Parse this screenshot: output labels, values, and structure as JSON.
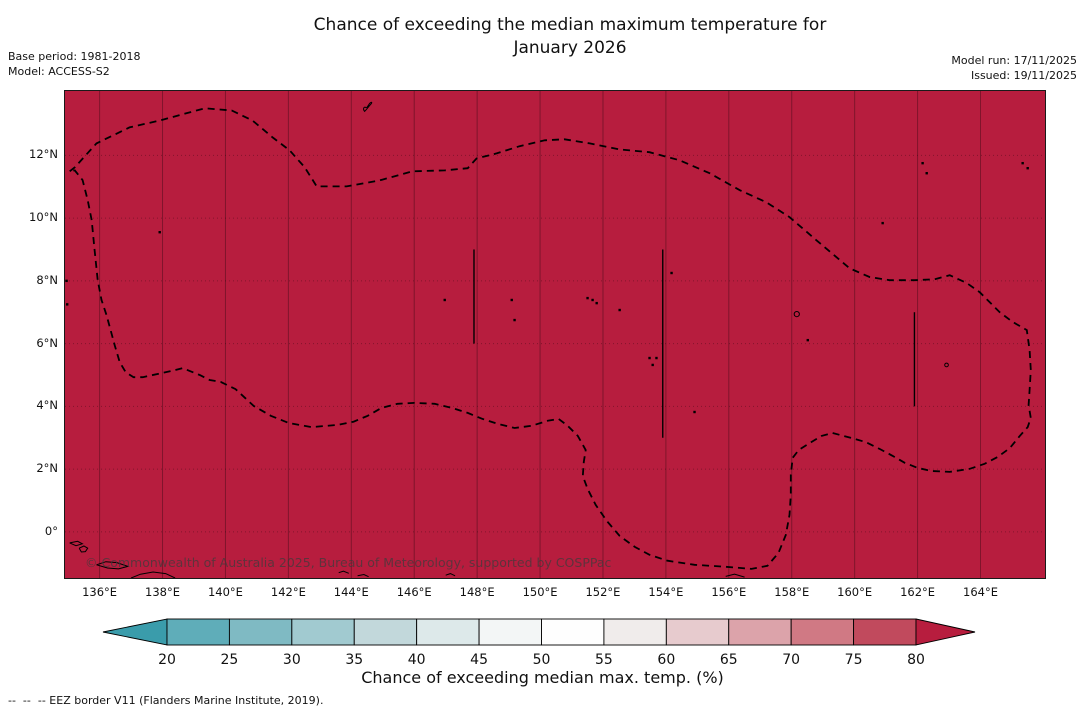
{
  "header": {
    "title_line1": "Chance of exceeding the median maximum temperature for",
    "title_line2": "January 2026",
    "base_period": "Base period: 1981-2018",
    "model": "Model: ACCESS-S2",
    "model_run": "Model run: 17/11/2025",
    "issued": "Issued: 19/11/2025"
  },
  "map": {
    "watermark": "© Commonwealth of Australia 2025, Bureau of Meteorology, supported by COSPPac"
  },
  "chart_data": {
    "type": "heatmap",
    "title": "Chance of exceeding the median maximum temperature for January 2026",
    "field_description": "Uniform chance > 80% across the displayed EEZ domain",
    "fill_color": "#b71d3e",
    "lon_range": [
      134.9,
      166.05
    ],
    "lat_range": [
      -1.47,
      14.05
    ],
    "lon_ticks": [
      136,
      138,
      140,
      142,
      144,
      146,
      148,
      150,
      152,
      154,
      156,
      158,
      160,
      162,
      164
    ],
    "lon_tick_labels": [
      "136°E",
      "138°E",
      "140°E",
      "142°E",
      "144°E",
      "146°E",
      "148°E",
      "150°E",
      "152°E",
      "154°E",
      "156°E",
      "158°E",
      "160°E",
      "162°E",
      "164°E"
    ],
    "lat_ticks": [
      0,
      2,
      4,
      6,
      8,
      10,
      12
    ],
    "lat_tick_labels": [
      "0°",
      "2°N",
      "4°N",
      "6°N",
      "8°N",
      "10°N",
      "12°N"
    ],
    "grid": true,
    "eez_border": [
      [
        135.05,
        11.49
      ],
      [
        135.21,
        11.62
      ],
      [
        135.9,
        12.38
      ],
      [
        136.95,
        12.89
      ],
      [
        137.91,
        13.11
      ],
      [
        139.34,
        13.5
      ],
      [
        140.2,
        13.43
      ],
      [
        140.86,
        13.11
      ],
      [
        141.5,
        12.57
      ],
      [
        142.04,
        12.16
      ],
      [
        142.52,
        11.62
      ],
      [
        142.9,
        11.01
      ],
      [
        143.85,
        11.01
      ],
      [
        144.9,
        11.2
      ],
      [
        145.95,
        11.49
      ],
      [
        146.97,
        11.52
      ],
      [
        147.7,
        11.59
      ],
      [
        147.98,
        11.9
      ],
      [
        148.62,
        12.06
      ],
      [
        149.35,
        12.29
      ],
      [
        150.15,
        12.48
      ],
      [
        150.78,
        12.51
      ],
      [
        151.58,
        12.38
      ],
      [
        152.53,
        12.19
      ],
      [
        153.48,
        12.1
      ],
      [
        154.44,
        11.84
      ],
      [
        155.39,
        11.43
      ],
      [
        156.35,
        10.89
      ],
      [
        157.2,
        10.5
      ],
      [
        157.93,
        10.03
      ],
      [
        158.79,
        9.29
      ],
      [
        159.84,
        8.4
      ],
      [
        160.48,
        8.12
      ],
      [
        161.11,
        8.02
      ],
      [
        161.91,
        8.02
      ],
      [
        162.54,
        8.05
      ],
      [
        163.02,
        8.18
      ],
      [
        163.56,
        7.93
      ],
      [
        163.97,
        7.64
      ],
      [
        164.61,
        7.0
      ],
      [
        165.02,
        6.69
      ],
      [
        165.47,
        6.43
      ],
      [
        165.56,
        5.79
      ],
      [
        165.6,
        5.16
      ],
      [
        165.56,
        4.52
      ],
      [
        165.53,
        4.04
      ],
      [
        165.6,
        3.63
      ],
      [
        165.5,
        3.34
      ],
      [
        165.25,
        3.06
      ],
      [
        164.93,
        2.67
      ],
      [
        164.55,
        2.39
      ],
      [
        164.13,
        2.17
      ],
      [
        163.66,
        2.01
      ],
      [
        163.02,
        1.91
      ],
      [
        162.45,
        1.94
      ],
      [
        162.0,
        2.04
      ],
      [
        161.59,
        2.2
      ],
      [
        161.21,
        2.42
      ],
      [
        160.8,
        2.64
      ],
      [
        160.35,
        2.86
      ],
      [
        159.91,
        2.99
      ],
      [
        159.3,
        3.15
      ],
      [
        158.95,
        3.06
      ],
      [
        158.57,
        2.83
      ],
      [
        158.22,
        2.61
      ],
      [
        158.03,
        2.36
      ],
      [
        157.97,
        1.82
      ],
      [
        157.97,
        1.18
      ],
      [
        157.93,
        0.54
      ],
      [
        157.81,
        -0.1
      ],
      [
        157.58,
        -0.67
      ],
      [
        157.23,
        -1.08
      ],
      [
        156.72,
        -1.18
      ],
      [
        155.87,
        -1.11
      ],
      [
        154.91,
        -1.05
      ],
      [
        154.05,
        -0.92
      ],
      [
        153.48,
        -0.73
      ],
      [
        153.01,
        -0.48
      ],
      [
        152.53,
        -0.13
      ],
      [
        152.12,
        0.35
      ],
      [
        151.77,
        0.86
      ],
      [
        151.51,
        1.37
      ],
      [
        151.36,
        1.78
      ],
      [
        151.39,
        2.23
      ],
      [
        151.45,
        2.61
      ],
      [
        151.2,
        3.06
      ],
      [
        150.88,
        3.38
      ],
      [
        150.59,
        3.6
      ],
      [
        150.24,
        3.54
      ],
      [
        149.73,
        3.38
      ],
      [
        149.19,
        3.31
      ],
      [
        148.66,
        3.44
      ],
      [
        148.17,
        3.6
      ],
      [
        147.7,
        3.79
      ],
      [
        147.19,
        3.95
      ],
      [
        146.65,
        4.08
      ],
      [
        146.01,
        4.11
      ],
      [
        145.47,
        4.08
      ],
      [
        144.96,
        3.95
      ],
      [
        144.52,
        3.7
      ],
      [
        144.07,
        3.51
      ],
      [
        143.57,
        3.41
      ],
      [
        142.74,
        3.34
      ],
      [
        142.01,
        3.47
      ],
      [
        141.44,
        3.7
      ],
      [
        140.9,
        4.01
      ],
      [
        140.32,
        4.55
      ],
      [
        139.85,
        4.78
      ],
      [
        139.5,
        4.84
      ],
      [
        139.18,
        5.0
      ],
      [
        138.86,
        5.13
      ],
      [
        138.64,
        5.22
      ],
      [
        138.29,
        5.13
      ],
      [
        137.84,
        5.03
      ],
      [
        137.37,
        4.93
      ],
      [
        137.08,
        4.93
      ],
      [
        136.83,
        5.09
      ],
      [
        136.64,
        5.41
      ],
      [
        136.48,
        5.95
      ],
      [
        136.35,
        6.43
      ],
      [
        136.22,
        6.91
      ],
      [
        136.06,
        7.39
      ],
      [
        135.94,
        8.02
      ],
      [
        135.84,
        8.98
      ],
      [
        135.75,
        9.93
      ],
      [
        135.62,
        10.57
      ],
      [
        135.46,
        11.21
      ],
      [
        135.21,
        11.52
      ],
      [
        135.05,
        11.49
      ]
    ],
    "internal_borders": [
      {
        "lon": 147.9,
        "lat_min": 6.0,
        "lat_max": 9.0
      },
      {
        "lon": 153.9,
        "lat_min": 3.0,
        "lat_max": 9.0
      },
      {
        "lon": 161.9,
        "lat_min": 4.0,
        "lat_max": 7.0
      }
    ],
    "island_points": [
      [
        137.91,
        9.55
      ],
      [
        134.95,
        8.0
      ],
      [
        134.97,
        7.25
      ],
      [
        146.97,
        7.39
      ],
      [
        149.1,
        7.39
      ],
      [
        149.19,
        6.75
      ],
      [
        151.51,
        7.45
      ],
      [
        151.67,
        7.39
      ],
      [
        151.8,
        7.29
      ],
      [
        152.53,
        7.07
      ],
      [
        154.18,
        8.25
      ],
      [
        153.48,
        5.54
      ],
      [
        153.7,
        5.54
      ],
      [
        153.58,
        5.32
      ],
      [
        154.91,
        3.82
      ],
      [
        160.89,
        9.84
      ],
      [
        162.16,
        11.75
      ],
      [
        162.29,
        11.43
      ],
      [
        165.34,
        11.75
      ],
      [
        165.5,
        11.59
      ],
      [
        158.51,
        6.11
      ]
    ],
    "named_islands": [
      {
        "name": "guam",
        "lon": 144.52,
        "lat": 13.56
      },
      {
        "name": "pohnpei",
        "lon": 158.16,
        "lat": 6.94,
        "r": 2.6
      },
      {
        "name": "kosrae",
        "lon": 162.92,
        "lat": 5.32,
        "r": 1.8
      }
    ],
    "coastlines": [
      [
        [
          135.05,
          -0.35
        ],
        [
          135.25,
          -0.44
        ],
        [
          135.45,
          -0.38
        ],
        [
          135.3,
          -0.3
        ],
        [
          135.05,
          -0.35
        ]
      ],
      [
        [
          135.35,
          -0.52
        ],
        [
          135.5,
          -0.45
        ],
        [
          135.62,
          -0.52
        ],
        [
          135.55,
          -0.63
        ],
        [
          135.42,
          -0.64
        ],
        [
          135.35,
          -0.52
        ]
      ],
      [
        [
          135.9,
          -1.05
        ],
        [
          136.2,
          -0.95
        ],
        [
          136.55,
          -0.98
        ],
        [
          136.9,
          -1.1
        ],
        [
          136.6,
          -1.18
        ],
        [
          136.25,
          -1.15
        ],
        [
          135.9,
          -1.05
        ]
      ],
      [
        [
          137.0,
          -1.47
        ],
        [
          137.3,
          -1.35
        ],
        [
          137.7,
          -1.28
        ],
        [
          138.1,
          -1.33
        ],
        [
          138.4,
          -1.47
        ]
      ],
      [
        [
          143.6,
          -1.3
        ],
        [
          143.75,
          -1.25
        ],
        [
          143.92,
          -1.32
        ]
      ],
      [
        [
          144.2,
          -1.4
        ],
        [
          144.4,
          -1.36
        ],
        [
          144.55,
          -1.43
        ]
      ],
      [
        [
          147.0,
          -1.38
        ],
        [
          147.15,
          -1.33
        ],
        [
          147.3,
          -1.4
        ]
      ],
      [
        [
          155.9,
          -1.42
        ],
        [
          156.18,
          -1.35
        ],
        [
          156.5,
          -1.44
        ]
      ]
    ]
  },
  "colorbar": {
    "label": "Chance of exceeding median max. temp. (%)",
    "tick_values": [
      20,
      25,
      30,
      35,
      40,
      45,
      50,
      55,
      60,
      65,
      70,
      75,
      80
    ],
    "segment_colors": [
      "#5fadb9",
      "#7fbac3",
      "#a1cad0",
      "#c2d8db",
      "#dde9ea",
      "#f3f6f6",
      "#fefefe",
      "#f0eceb",
      "#e7cbce",
      "#dca3aa",
      "#d07984",
      "#c14a5d"
    ],
    "under_color": "#3a9cab",
    "over_color": "#b71d3e",
    "edge_color": "#000000"
  },
  "footer": {
    "legend_dashes": "--  --  --",
    "eez_note": " EEZ border V11 (Flanders Marine Institute, 2019)."
  }
}
